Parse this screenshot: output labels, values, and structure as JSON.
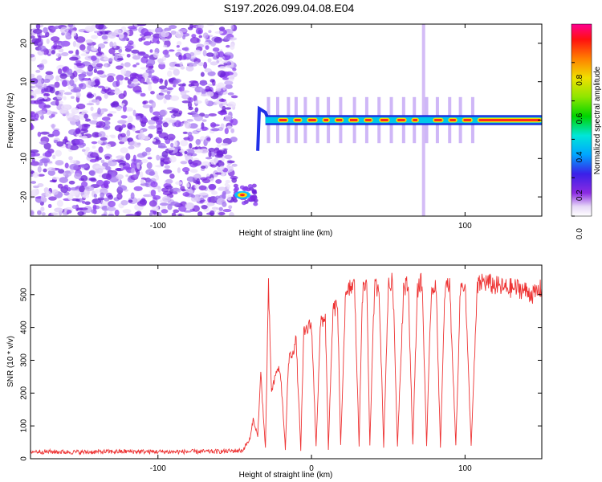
{
  "chart_data": [
    {
      "type": "heatmap",
      "title": "S197.2026.099.04.08.E04",
      "xlabel": "Height of straight line (km)",
      "ylabel": "Frequency (Hz)",
      "xlim": [
        -183,
        150
      ],
      "ylim": [
        -25,
        25
      ],
      "xticks": [
        -100,
        0,
        100
      ],
      "xtick_labels": [
        "-100",
        "",
        "100"
      ],
      "yticks": [
        -20,
        -10,
        0,
        10,
        20
      ],
      "yticks_labels": [
        "-20",
        "-10",
        "0",
        "10",
        "20"
      ],
      "colorbar": {
        "label": "Normalized spectral amplitude",
        "range": [
          0,
          1
        ],
        "ticks": [
          0.0,
          0.2,
          0.4,
          0.6,
          0.8
        ],
        "tick_labels": [
          "0.0",
          "0.2",
          "0.4",
          "0.6",
          "0.8"
        ]
      },
      "features": [
        {
          "name": "noise",
          "x_range": [
            -183,
            -50
          ],
          "description": "scattered low-amplitude noise"
        },
        {
          "name": "low-frequency track",
          "x_range": [
            -50,
            -38
          ],
          "frequency": -20
        },
        {
          "name": "carrier track",
          "x_range": [
            -35,
            150
          ],
          "frequency": 0
        }
      ]
    },
    {
      "type": "line",
      "xlabel": "Height of straight line (km)",
      "ylabel": "SNR (10 * v/v)",
      "xlim": [
        -183,
        150
      ],
      "ylim": [
        0,
        590
      ],
      "xticks": [
        -100,
        0,
        100
      ],
      "xtick_labels": [
        "-100",
        "0",
        "100"
      ],
      "yticks": [
        0,
        100,
        200,
        300,
        400,
        500
      ],
      "ytick_labels": [
        "0",
        "100",
        "200",
        "300",
        "400",
        "500"
      ],
      "series": [
        {
          "name": "SNR",
          "color": "#ee3333",
          "x": [
            -183,
            -150,
            -120,
            -90,
            -60,
            -45,
            -40,
            -38,
            -35,
            -33,
            -30,
            -28,
            -26,
            -24,
            -22,
            -20,
            -17,
            -15,
            -12,
            -10,
            -7,
            -5,
            -2,
            0,
            3,
            6,
            9,
            11,
            14,
            17,
            19,
            22,
            25,
            28,
            31,
            33,
            36,
            38,
            41,
            44,
            47,
            50,
            53,
            56,
            60,
            63,
            66,
            69,
            72,
            75,
            78,
            81,
            84,
            87,
            90,
            94,
            97,
            100,
            104,
            108,
            111,
            112,
            118,
            125,
            135,
            145,
            150
          ],
          "y": [
            22,
            20,
            22,
            21,
            22,
            25,
            60,
            120,
            70,
            260,
            30,
            520,
            200,
            240,
            280,
            250,
            30,
            300,
            330,
            360,
            30,
            380,
            400,
            410,
            40,
            420,
            430,
            30,
            450,
            470,
            35,
            480,
            520,
            530,
            40,
            500,
            540,
            40,
            520,
            530,
            40,
            520,
            540,
            40,
            520,
            530,
            40,
            520,
            540,
            40,
            510,
            540,
            40,
            520,
            530,
            40,
            520,
            540,
            40,
            520,
            540,
            540,
            530,
            520,
            520,
            500,
            520
          ]
        }
      ]
    }
  ]
}
